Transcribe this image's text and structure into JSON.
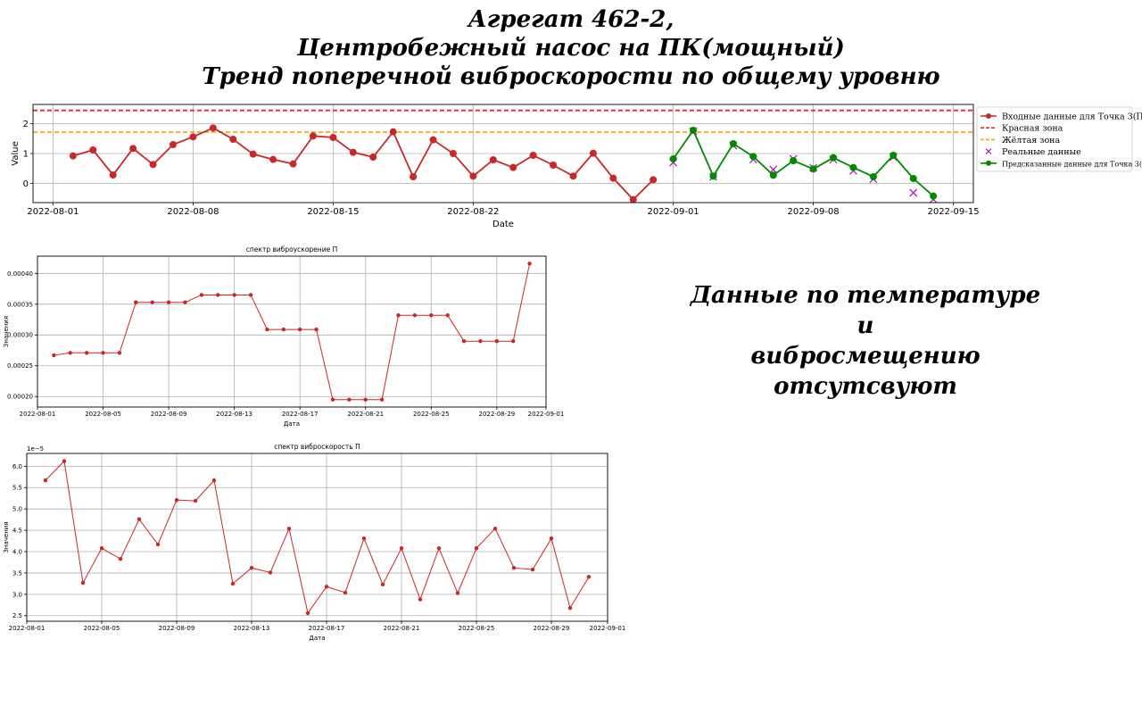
{
  "page": {
    "title_lines": [
      "Агрегат 462-2,",
      "Центробежный насос на ПК(мощный)",
      "Тренд поперечной виброскорости по общему уровню"
    ],
    "missing_note_lines": [
      "Данные по температуре и",
      "вибросмещению отсутсвуют"
    ]
  },
  "chart_data": [
    {
      "type": "line",
      "title": "",
      "xlabel": "Date",
      "ylabel": "Value",
      "xlim": [
        "2022-07-31",
        "2022-09-16"
      ],
      "ylim": [
        -0.65,
        2.65
      ],
      "xticks": [
        "2022-08-01",
        "2022-08-08",
        "2022-08-15",
        "2022-08-22",
        "2022-09-01",
        "2022-09-08",
        "2022-09-15"
      ],
      "yticks": [
        0,
        1,
        2
      ],
      "grid": true,
      "legend_position": "outside-right",
      "legend": [
        "Входные данные для Точка 3(П)",
        "Красная зона",
        "Жёлтая зона",
        "Реальные данные",
        "Предсказанные данные для Точка 3(П)"
      ],
      "thresholds": [
        {
          "name": "Красная зона",
          "value": 2.45,
          "color": "#e03030",
          "style": "dashed"
        },
        {
          "name": "Жёлтая зона",
          "value": 1.72,
          "color": "#ffa500",
          "style": "dashed"
        }
      ],
      "series": [
        {
          "name": "Входные данные для Точка 3(П)",
          "color": "#c82828",
          "marker": "circle",
          "x": [
            "2022-08-02",
            "2022-08-03",
            "2022-08-04",
            "2022-08-05",
            "2022-08-06",
            "2022-08-07",
            "2022-08-08",
            "2022-08-09",
            "2022-08-10",
            "2022-08-11",
            "2022-08-12",
            "2022-08-13",
            "2022-08-14",
            "2022-08-15",
            "2022-08-16",
            "2022-08-17",
            "2022-08-18",
            "2022-08-19",
            "2022-08-20",
            "2022-08-21",
            "2022-08-22",
            "2022-08-23",
            "2022-08-24",
            "2022-08-25",
            "2022-08-26",
            "2022-08-27",
            "2022-08-28",
            "2022-08-29",
            "2022-08-30",
            "2022-08-31"
          ],
          "y": [
            0.92,
            1.12,
            0.28,
            1.17,
            0.63,
            1.3,
            1.56,
            1.86,
            1.48,
            0.98,
            0.8,
            0.65,
            1.59,
            1.54,
            1.04,
            0.88,
            1.73,
            0.22,
            1.46,
            1.0,
            0.24,
            0.79,
            0.53,
            0.94,
            0.61,
            0.24,
            1.01,
            0.17,
            -0.55,
            0.12
          ]
        },
        {
          "name": "Реальные данные",
          "color": "#b020b0",
          "marker": "x",
          "x": [
            "2022-09-01",
            "2022-09-02",
            "2022-09-03",
            "2022-09-04",
            "2022-09-05",
            "2022-09-06",
            "2022-09-07",
            "2022-09-08",
            "2022-09-09",
            "2022-09-10",
            "2022-09-11",
            "2022-09-12",
            "2022-09-13",
            "2022-09-14"
          ],
          "y": [
            0.7,
            1.75,
            0.22,
            1.27,
            0.8,
            0.46,
            0.82,
            0.52,
            0.8,
            0.42,
            0.14,
            0.88,
            -0.32,
            -0.54
          ]
        },
        {
          "name": "Предсказанные данные для Точка 3(П)",
          "color": "#008a00",
          "marker": "circle",
          "x": [
            "2022-09-01",
            "2022-09-02",
            "2022-09-03",
            "2022-09-04",
            "2022-09-05",
            "2022-09-06",
            "2022-09-07",
            "2022-09-08",
            "2022-09-09",
            "2022-09-10",
            "2022-09-11",
            "2022-09-12",
            "2022-09-13",
            "2022-09-14"
          ],
          "y": [
            0.82,
            1.78,
            0.24,
            1.33,
            0.9,
            0.27,
            0.76,
            0.48,
            0.86,
            0.53,
            0.22,
            0.94,
            0.16,
            -0.43
          ]
        }
      ]
    },
    {
      "type": "line",
      "title": "спектр виброускорение П",
      "xlabel": "Дата",
      "ylabel": "Значения",
      "xlim": [
        "2022-08-01",
        "2022-09-01"
      ],
      "ylim": [
        0.000183,
        0.000428
      ],
      "xticks": [
        "2022-08-01",
        "2022-08-05",
        "2022-08-09",
        "2022-08-13",
        "2022-08-17",
        "2022-08-21",
        "2022-08-25",
        "2022-08-29",
        "2022-09-01"
      ],
      "yticks": [
        "0.00020",
        "0.00025",
        "0.00030",
        "0.00035",
        "0.00040"
      ],
      "grid": true,
      "series": [
        {
          "name": "",
          "color": "#c82828",
          "marker": "circle",
          "x": [
            "2022-08-02",
            "2022-08-03",
            "2022-08-04",
            "2022-08-05",
            "2022-08-06",
            "2022-08-07",
            "2022-08-08",
            "2022-08-09",
            "2022-08-10",
            "2022-08-11",
            "2022-08-12",
            "2022-08-13",
            "2022-08-14",
            "2022-08-15",
            "2022-08-16",
            "2022-08-17",
            "2022-08-18",
            "2022-08-19",
            "2022-08-20",
            "2022-08-21",
            "2022-08-22",
            "2022-08-23",
            "2022-08-24",
            "2022-08-25",
            "2022-08-26",
            "2022-08-27",
            "2022-08-28",
            "2022-08-29",
            "2022-08-30",
            "2022-08-31"
          ],
          "y": [
            0.000267,
            0.000271,
            0.000271,
            0.000271,
            0.000271,
            0.000353,
            0.000353,
            0.000353,
            0.000353,
            0.000365,
            0.000365,
            0.000365,
            0.000365,
            0.000309,
            0.000309,
            0.000309,
            0.000309,
            0.000195,
            0.000195,
            0.000195,
            0.000195,
            0.000332,
            0.000332,
            0.000332,
            0.000332,
            0.00029,
            0.00029,
            0.00029,
            0.00029,
            0.000416
          ]
        }
      ]
    },
    {
      "type": "line",
      "title": "спектр виброскорость П",
      "xlabel": "Дата",
      "ylabel": "Значения",
      "scale_label": "1e−5",
      "xlim": [
        "2022-08-01",
        "2022-09-01"
      ],
      "ylim": [
        2.37,
        6.3
      ],
      "xticks": [
        "2022-08-01",
        "2022-08-05",
        "2022-08-09",
        "2022-08-13",
        "2022-08-17",
        "2022-08-21",
        "2022-08-25",
        "2022-08-29",
        "2022-09-01"
      ],
      "yticks": [
        "2.5",
        "3.0",
        "3.5",
        "4.0",
        "4.5",
        "5.0",
        "5.5",
        "6.0"
      ],
      "grid": true,
      "series": [
        {
          "name": "",
          "color": "#c82828",
          "marker": "circle",
          "x": [
            "2022-08-02",
            "2022-08-03",
            "2022-08-04",
            "2022-08-05",
            "2022-08-06",
            "2022-08-07",
            "2022-08-08",
            "2022-08-09",
            "2022-08-10",
            "2022-08-11",
            "2022-08-12",
            "2022-08-13",
            "2022-08-14",
            "2022-08-15",
            "2022-08-16",
            "2022-08-17",
            "2022-08-18",
            "2022-08-19",
            "2022-08-20",
            "2022-08-21",
            "2022-08-22",
            "2022-08-23",
            "2022-08-24",
            "2022-08-25",
            "2022-08-26",
            "2022-08-27",
            "2022-08-28",
            "2022-08-29",
            "2022-08-30",
            "2022-08-31"
          ],
          "y": [
            5.67,
            6.12,
            3.27,
            4.08,
            3.83,
            4.76,
            4.17,
            5.21,
            5.19,
            5.67,
            3.25,
            3.62,
            3.51,
            4.54,
            2.56,
            3.18,
            3.04,
            4.31,
            3.23,
            4.08,
            2.88,
            4.08,
            3.03,
            4.08,
            4.54,
            3.62,
            3.58,
            4.31,
            2.68,
            3.41
          ]
        }
      ]
    }
  ]
}
